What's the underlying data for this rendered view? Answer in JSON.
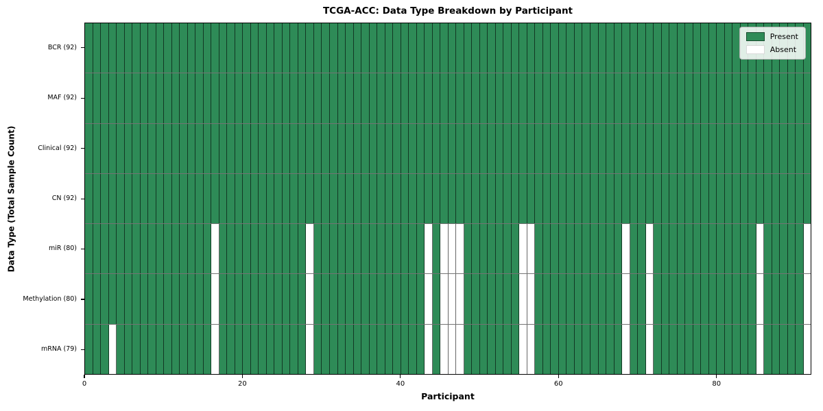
{
  "figure": {
    "title": "TCGA-ACC: Data Type Breakdown by Participant",
    "xlabel": "Participant",
    "ylabel": "Data Type (Total Sample Count)"
  },
  "legend": {
    "items": [
      {
        "name": "present",
        "label": "Present"
      },
      {
        "name": "absent",
        "label": "Absent"
      }
    ]
  },
  "colors": {
    "present": "#2e8b57",
    "absent": "#ffffff"
  },
  "chart_data": {
    "type": "heatmap",
    "title": "TCGA-ACC: Data Type Breakdown by Participant",
    "xlabel": "Participant",
    "ylabel": "Data Type (Total Sample Count)",
    "x_range": [
      0,
      92
    ],
    "x_ticks": [
      0,
      20,
      40,
      60,
      80
    ],
    "n_participants": 92,
    "grid": false,
    "legend_position": "upper right",
    "legend_entries": [
      "Present",
      "Absent"
    ],
    "rows": [
      {
        "label": "BCR (92)",
        "data_type": "BCR",
        "present_count": 92,
        "absent_participants": []
      },
      {
        "label": "MAF (92)",
        "data_type": "MAF",
        "present_count": 92,
        "absent_participants": []
      },
      {
        "label": "Clinical (92)",
        "data_type": "Clinical",
        "present_count": 92,
        "absent_participants": []
      },
      {
        "label": "CN (92)",
        "data_type": "CN",
        "present_count": 92,
        "absent_participants": []
      },
      {
        "label": "miR (80)",
        "data_type": "miR",
        "present_count": 80,
        "absent_participants": [
          16,
          28,
          43,
          45,
          46,
          47,
          55,
          56,
          68,
          71,
          85,
          91
        ]
      },
      {
        "label": "Methylation (80)",
        "data_type": "Methylation",
        "present_count": 80,
        "absent_participants": [
          16,
          28,
          43,
          45,
          46,
          47,
          55,
          56,
          68,
          71,
          85,
          91
        ]
      },
      {
        "label": "mRNA (79)",
        "data_type": "mRNA",
        "present_count": 79,
        "absent_participants": [
          3,
          16,
          28,
          43,
          45,
          46,
          47,
          55,
          56,
          68,
          71,
          85,
          91
        ]
      }
    ]
  }
}
